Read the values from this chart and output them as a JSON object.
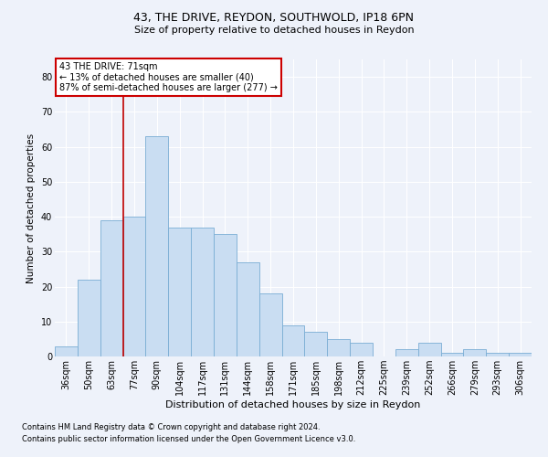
{
  "title1": "43, THE DRIVE, REYDON, SOUTHWOLD, IP18 6PN",
  "title2": "Size of property relative to detached houses in Reydon",
  "xlabel": "Distribution of detached houses by size in Reydon",
  "ylabel": "Number of detached properties",
  "categories": [
    "36sqm",
    "50sqm",
    "63sqm",
    "77sqm",
    "90sqm",
    "104sqm",
    "117sqm",
    "131sqm",
    "144sqm",
    "158sqm",
    "171sqm",
    "185sqm",
    "198sqm",
    "212sqm",
    "225sqm",
    "239sqm",
    "252sqm",
    "266sqm",
    "279sqm",
    "293sqm",
    "306sqm"
  ],
  "values": [
    3,
    22,
    39,
    40,
    63,
    37,
    37,
    35,
    27,
    18,
    9,
    7,
    5,
    4,
    0,
    2,
    4,
    1,
    2,
    1,
    1
  ],
  "bar_color": "#c9ddf2",
  "bar_edge_color": "#7aadd4",
  "annotation_line1": "43 THE DRIVE: 71sqm",
  "annotation_line2": "← 13% of detached houses are smaller (40)",
  "annotation_line3": "87% of semi-detached houses are larger (277) →",
  "vline_color": "#c00000",
  "vline_position": 2.5,
  "ylim": [
    0,
    85
  ],
  "yticks": [
    0,
    10,
    20,
    30,
    40,
    50,
    60,
    70,
    80
  ],
  "footnote1": "Contains HM Land Registry data © Crown copyright and database right 2024.",
  "footnote2": "Contains public sector information licensed under the Open Government Licence v3.0.",
  "background_color": "#eef2fa",
  "grid_color": "#ffffff",
  "annotation_box_bg": "#ffffff",
  "annotation_box_edge": "#cc0000",
  "title1_fontsize": 9,
  "title2_fontsize": 8,
  "ylabel_fontsize": 7.5,
  "xlabel_fontsize": 8,
  "tick_fontsize": 7,
  "annot_fontsize": 7
}
